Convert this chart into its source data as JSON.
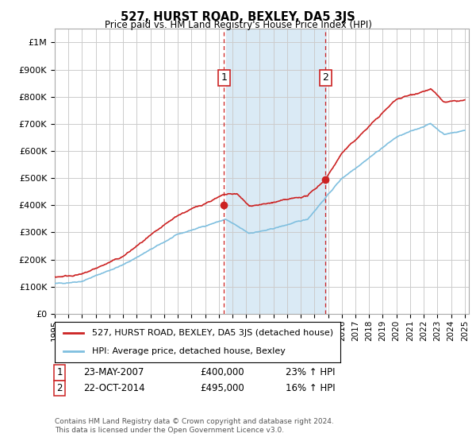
{
  "title": "527, HURST ROAD, BEXLEY, DA5 3JS",
  "subtitle": "Price paid vs. HM Land Registry's House Price Index (HPI)",
  "ylim": [
    0,
    1050000
  ],
  "yticks": [
    0,
    100000,
    200000,
    300000,
    400000,
    500000,
    600000,
    700000,
    800000,
    900000,
    1000000
  ],
  "ytick_labels": [
    "£0",
    "£100K",
    "£200K",
    "£300K",
    "£400K",
    "£500K",
    "£600K",
    "£700K",
    "£800K",
    "£900K",
    "£1M"
  ],
  "hpi_color": "#7fbfdf",
  "price_color": "#cc2222",
  "shaded_region": [
    2007.55,
    2014.83
  ],
  "shaded_color": "#daeaf5",
  "transaction1_x": 2007.39,
  "transaction1_y": 400000,
  "transaction2_x": 2014.81,
  "transaction2_y": 495000,
  "vline_color": "#cc2222",
  "legend_label1": "527, HURST ROAD, BEXLEY, DA5 3JS (detached house)",
  "legend_label2": "HPI: Average price, detached house, Bexley",
  "annotation1_label": "1",
  "annotation1_date": "23-MAY-2007",
  "annotation1_price": "£400,000",
  "annotation1_hpi": "23% ↑ HPI",
  "annotation2_label": "2",
  "annotation2_date": "22-OCT-2014",
  "annotation2_price": "£495,000",
  "annotation2_hpi": "16% ↑ HPI",
  "footer": "Contains HM Land Registry data © Crown copyright and database right 2024.\nThis data is licensed under the Open Government Licence v3.0.",
  "background_color": "#ffffff",
  "plot_bg_color": "#ffffff",
  "grid_color": "#cccccc",
  "xlim_left": 1995,
  "xlim_right": 2025.3
}
